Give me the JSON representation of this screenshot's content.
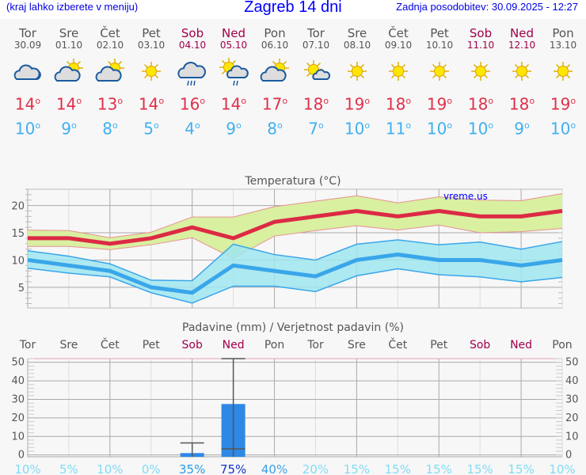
{
  "header": {
    "hint": "(kraj lahko izberete v meniju)",
    "title": "Zagreb 14 dni",
    "updated": "Zadnja posodobitev: 30.09.2025 - 12:27"
  },
  "days": [
    {
      "name": "Tor",
      "date": "30.09",
      "weekend": false,
      "icon": "cloudy-icon",
      "tmax": "14",
      "tmin": "10"
    },
    {
      "name": "Sre",
      "date": "01.10",
      "weekend": false,
      "icon": "partly-cloudy-icon",
      "tmax": "14",
      "tmin": "9"
    },
    {
      "name": "Čet",
      "date": "02.10",
      "weekend": false,
      "icon": "partly-cloudy-icon",
      "tmax": "13",
      "tmin": "8"
    },
    {
      "name": "Pet",
      "date": "03.10",
      "weekend": false,
      "icon": "sun-icon",
      "tmax": "14",
      "tmin": "5"
    },
    {
      "name": "Sob",
      "date": "04.10",
      "weekend": true,
      "icon": "rain-cloud-icon",
      "tmax": "16",
      "tmin": "4"
    },
    {
      "name": "Ned",
      "date": "05.10",
      "weekend": true,
      "icon": "sun-rain-icon",
      "tmax": "14",
      "tmin": "9"
    },
    {
      "name": "Pon",
      "date": "06.10",
      "weekend": false,
      "icon": "partly-cloudy-icon",
      "tmax": "17",
      "tmin": "8"
    },
    {
      "name": "Tor",
      "date": "07.10",
      "weekend": false,
      "icon": "sun-small-cloud-icon",
      "tmax": "18",
      "tmin": "7"
    },
    {
      "name": "Sre",
      "date": "08.10",
      "weekend": false,
      "icon": "sun-icon",
      "tmax": "19",
      "tmin": "10"
    },
    {
      "name": "Čet",
      "date": "09.10",
      "weekend": false,
      "icon": "sun-icon",
      "tmax": "18",
      "tmin": "11"
    },
    {
      "name": "Pet",
      "date": "10.10",
      "weekend": false,
      "icon": "sun-icon",
      "tmax": "19",
      "tmin": "10"
    },
    {
      "name": "Sob",
      "date": "11.10",
      "weekend": true,
      "icon": "sun-icon",
      "tmax": "18",
      "tmin": "10"
    },
    {
      "name": "Ned",
      "date": "12.10",
      "weekend": true,
      "icon": "sun-icon",
      "tmax": "18",
      "tmin": "9"
    },
    {
      "name": "Pon",
      "date": "13.10",
      "weekend": false,
      "icon": "sun-icon",
      "tmax": "19",
      "tmin": "10"
    }
  ],
  "degree": "o",
  "chart_data": [
    {
      "type": "line",
      "title": "Temperatura (°C)",
      "watermark": "vreme.us",
      "ylim": [
        1.2,
        23
      ],
      "yticks": [
        5,
        10,
        15,
        20
      ],
      "grid": true,
      "series": [
        {
          "role": "max",
          "color": "#dc2a44",
          "values": [
            14,
            14,
            13,
            14,
            16,
            14,
            17,
            18,
            19,
            18,
            19,
            18,
            18,
            19
          ],
          "upper": [
            15.5,
            15.4,
            14.1,
            15.1,
            17.9,
            17.9,
            19.8,
            20.8,
            21.8,
            20.5,
            21.6,
            21,
            20.9,
            22.2
          ],
          "lower": [
            12.5,
            12.5,
            11.9,
            12.8,
            14.1,
            10.3,
            14.4,
            15.4,
            16.3,
            15.5,
            16.4,
            15,
            15.2,
            15.8
          ],
          "band_color": "#d8f0a0"
        },
        {
          "role": "min",
          "color": "#3aa6ea",
          "values": [
            10,
            9,
            8,
            5,
            4,
            9,
            8,
            7,
            10,
            11,
            10,
            10,
            9,
            10
          ],
          "upper": [
            11.7,
            10.7,
            9.3,
            6.3,
            6.2,
            12.9,
            11,
            10,
            12.9,
            13.7,
            12.8,
            13.3,
            12,
            13.4
          ],
          "lower": [
            8.5,
            7.6,
            6.9,
            4,
            2.1,
            5.2,
            5.2,
            4.2,
            7.1,
            8.4,
            7.3,
            6.9,
            6,
            6.8
          ],
          "band_color": "#a0e6f0"
        }
      ]
    },
    {
      "type": "bar",
      "title": "Padavine (mm) / Verjetnost padavin (%)",
      "ylim": [
        -1,
        52
      ],
      "yticks": [
        0,
        10,
        20,
        30,
        40,
        50
      ],
      "grid": true,
      "categories": [
        "Tor",
        "Sre",
        "Čet",
        "Pet",
        "Sob",
        "Ned",
        "Pon",
        "Tor",
        "Sre",
        "Čet",
        "Pet",
        "Sob",
        "Ned",
        "Pon"
      ],
      "values": [
        0,
        0,
        0,
        0,
        1,
        27.5,
        0,
        0,
        0,
        0,
        0,
        0,
        0,
        0
      ],
      "error_low": [
        null,
        null,
        null,
        null,
        0,
        3.3,
        null,
        null,
        null,
        null,
        null,
        null,
        null,
        null
      ],
      "error_high": [
        null,
        null,
        null,
        null,
        6.5,
        52,
        null,
        null,
        null,
        null,
        null,
        null,
        null,
        null
      ],
      "probability": [
        "10%",
        "5%",
        "10%",
        "0%",
        "35%",
        "75%",
        "40%",
        "20%",
        "15%",
        "15%",
        "15%",
        "15%",
        "15%",
        "10%"
      ],
      "probability_colors": [
        "#80dcf4",
        "#80dcf4",
        "#80dcf4",
        "#80dcf4",
        "#2a9ce4",
        "#1034c8",
        "#3aa0e8",
        "#80dcf4",
        "#80dcf4",
        "#80dcf4",
        "#80dcf4",
        "#80dcf4",
        "#80dcf4",
        "#80dcf4"
      ],
      "bar_color": "#2e88e6"
    }
  ]
}
